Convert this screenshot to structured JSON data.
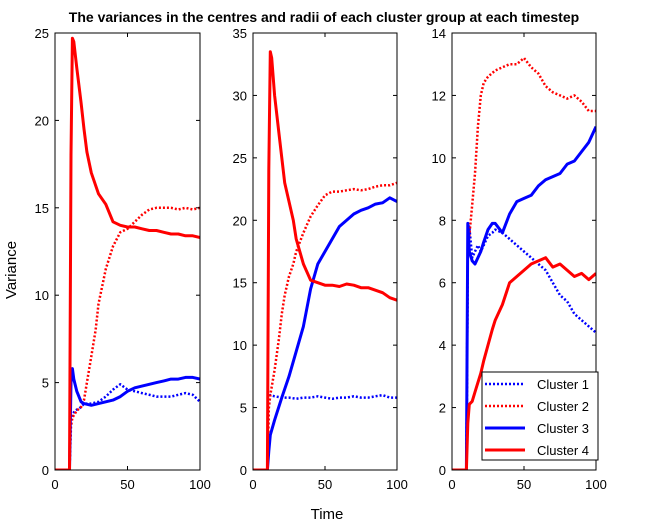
{
  "figure": {
    "title": "The variances in the centres and radii of each cluster group at each timestep",
    "xlabel": "Time",
    "ylabel": "Variance"
  },
  "legend": {
    "entries": [
      {
        "label": "Cluster 1",
        "color": "#0000ff",
        "style": "dotted"
      },
      {
        "label": "Cluster 2",
        "color": "#ff0000",
        "style": "dotted"
      },
      {
        "label": "Cluster 3",
        "color": "#0000ff",
        "style": "solid"
      },
      {
        "label": "Cluster 4",
        "color": "#ff0000",
        "style": "solid"
      }
    ],
    "placement": "bottom-right of third panel"
  },
  "chart_data": [
    {
      "type": "line",
      "xlim": [
        0,
        100
      ],
      "ylim": [
        0,
        25
      ],
      "xticks": [
        0,
        50,
        100
      ],
      "yticks": [
        0,
        5,
        10,
        15,
        20,
        25
      ],
      "series": [
        {
          "name": "Cluster 1",
          "color": "#0000ff",
          "style": "dotted",
          "x": [
            0,
            9,
            10,
            11,
            12,
            14,
            16,
            18,
            20,
            25,
            30,
            35,
            40,
            45,
            50,
            55,
            60,
            65,
            70,
            75,
            80,
            85,
            90,
            95,
            100
          ],
          "y": [
            0,
            0,
            0,
            3.0,
            3.2,
            3.4,
            3.5,
            3.6,
            3.8,
            3.8,
            3.9,
            4.2,
            4.6,
            4.9,
            4.6,
            4.5,
            4.4,
            4.3,
            4.2,
            4.2,
            4.2,
            4.3,
            4.4,
            4.3,
            3.9
          ]
        },
        {
          "name": "Cluster 2",
          "color": "#ff0000",
          "style": "dotted",
          "x": [
            0,
            9,
            10,
            11,
            12,
            15,
            18,
            20,
            22,
            25,
            28,
            30,
            35,
            40,
            45,
            50,
            55,
            60,
            65,
            70,
            75,
            80,
            85,
            90,
            95,
            100
          ],
          "y": [
            0,
            0,
            0,
            2.5,
            3.0,
            3.4,
            3.6,
            4.0,
            5.0,
            6.5,
            8.0,
            9.5,
            11.5,
            12.8,
            13.6,
            13.8,
            14.2,
            14.6,
            14.9,
            15.0,
            15.0,
            15.0,
            14.9,
            15.0,
            14.9,
            15.0
          ]
        },
        {
          "name": "Cluster 3",
          "color": "#0000ff",
          "style": "solid",
          "x": [
            0,
            9,
            10,
            11,
            12,
            13,
            15,
            18,
            20,
            25,
            30,
            35,
            40,
            45,
            50,
            55,
            60,
            65,
            70,
            75,
            80,
            85,
            90,
            95,
            100
          ],
          "y": [
            0,
            0,
            0,
            5.0,
            5.8,
            5.2,
            4.5,
            3.9,
            3.8,
            3.7,
            3.8,
            3.9,
            4.0,
            4.2,
            4.5,
            4.7,
            4.8,
            4.9,
            5.0,
            5.1,
            5.2,
            5.2,
            5.3,
            5.3,
            5.2
          ]
        },
        {
          "name": "Cluster 4",
          "color": "#ff0000",
          "style": "solid",
          "x": [
            0,
            9,
            10,
            11,
            12,
            13,
            15,
            18,
            20,
            22,
            25,
            30,
            35,
            40,
            45,
            50,
            55,
            60,
            65,
            70,
            75,
            80,
            85,
            90,
            95,
            100
          ],
          "y": [
            0,
            0,
            0,
            18,
            24.7,
            24.5,
            23.0,
            21.0,
            19.5,
            18.2,
            17.0,
            15.8,
            15.2,
            14.2,
            14.0,
            13.9,
            13.9,
            13.8,
            13.7,
            13.7,
            13.6,
            13.5,
            13.5,
            13.4,
            13.4,
            13.3
          ]
        }
      ]
    },
    {
      "type": "line",
      "xlim": [
        0,
        100
      ],
      "ylim": [
        0,
        35
      ],
      "xticks": [
        0,
        50,
        100
      ],
      "yticks": [
        0,
        5,
        10,
        15,
        20,
        25,
        30,
        35
      ],
      "series": [
        {
          "name": "Cluster 1",
          "color": "#0000ff",
          "style": "dotted",
          "x": [
            0,
            9,
            10,
            11,
            12,
            15,
            20,
            25,
            30,
            35,
            40,
            45,
            50,
            55,
            60,
            65,
            70,
            75,
            80,
            85,
            90,
            95,
            100
          ],
          "y": [
            0,
            0,
            0,
            5.0,
            6.0,
            5.9,
            5.8,
            5.8,
            5.7,
            5.8,
            5.8,
            5.9,
            5.8,
            5.7,
            5.8,
            5.8,
            5.9,
            5.8,
            5.8,
            5.9,
            6.0,
            5.8,
            5.8
          ]
        },
        {
          "name": "Cluster 2",
          "color": "#ff0000",
          "style": "dotted",
          "x": [
            0,
            9,
            10,
            11,
            12,
            15,
            18,
            20,
            22,
            25,
            28,
            30,
            35,
            40,
            45,
            50,
            55,
            60,
            65,
            70,
            75,
            80,
            85,
            90,
            95,
            100
          ],
          "y": [
            0,
            0,
            0,
            5.0,
            6.0,
            8.0,
            10.5,
            12.5,
            14.0,
            15.5,
            16.5,
            17.5,
            19.0,
            20.3,
            21.2,
            22.0,
            22.3,
            22.3,
            22.4,
            22.5,
            22.4,
            22.5,
            22.7,
            22.8,
            22.8,
            23.0
          ]
        },
        {
          "name": "Cluster 3",
          "color": "#0000ff",
          "style": "solid",
          "x": [
            0,
            9,
            10,
            11,
            12,
            15,
            20,
            25,
            30,
            35,
            40,
            45,
            50,
            55,
            60,
            65,
            70,
            75,
            80,
            85,
            90,
            95,
            100
          ],
          "y": [
            0,
            0,
            0,
            1.5,
            2.8,
            4.0,
            5.8,
            7.5,
            9.5,
            11.5,
            14.5,
            16.5,
            17.5,
            18.5,
            19.5,
            20.0,
            20.5,
            20.8,
            21.0,
            21.3,
            21.4,
            21.8,
            21.5
          ]
        },
        {
          "name": "Cluster 4",
          "color": "#ff0000",
          "style": "solid",
          "x": [
            0,
            9,
            10,
            11,
            12,
            13,
            15,
            18,
            20,
            22,
            25,
            28,
            30,
            35,
            40,
            45,
            50,
            55,
            60,
            65,
            70,
            75,
            80,
            85,
            90,
            95,
            100
          ],
          "y": [
            0,
            0,
            0,
            24,
            33.5,
            33.0,
            30.0,
            27.0,
            25.0,
            23.0,
            21.5,
            20.0,
            18.5,
            16.5,
            15.2,
            15.0,
            14.8,
            14.8,
            14.7,
            14.9,
            14.8,
            14.6,
            14.6,
            14.4,
            14.2,
            13.8,
            13.6
          ]
        }
      ]
    },
    {
      "type": "line",
      "xlim": [
        0,
        100
      ],
      "ylim": [
        0,
        14
      ],
      "xticks": [
        0,
        50,
        100
      ],
      "yticks": [
        0,
        2,
        4,
        6,
        8,
        10,
        12,
        14
      ],
      "series": [
        {
          "name": "Cluster 1",
          "color": "#0000ff",
          "style": "dotted",
          "x": [
            0,
            9,
            10,
            11,
            12,
            14,
            16,
            18,
            20,
            22,
            25,
            28,
            30,
            35,
            40,
            45,
            50,
            55,
            60,
            65,
            70,
            75,
            80,
            85,
            90,
            95,
            100
          ],
          "y": [
            0,
            0,
            0,
            7.0,
            7.8,
            6.8,
            7.0,
            7.2,
            7.0,
            7.2,
            7.5,
            7.6,
            7.7,
            7.6,
            7.4,
            7.2,
            7.0,
            6.8,
            6.6,
            6.4,
            6.0,
            5.6,
            5.4,
            5.0,
            4.8,
            4.6,
            4.4
          ]
        },
        {
          "name": "Cluster 2",
          "color": "#ff0000",
          "style": "dotted",
          "x": [
            0,
            9,
            10,
            11,
            12,
            14,
            16,
            18,
            20,
            22,
            25,
            30,
            35,
            40,
            45,
            50,
            55,
            60,
            65,
            70,
            75,
            80,
            85,
            90,
            95,
            100
          ],
          "y": [
            0,
            0,
            0,
            7.0,
            7.5,
            8.5,
            9.5,
            11.0,
            12.0,
            12.4,
            12.6,
            12.8,
            12.9,
            13.0,
            13.0,
            13.2,
            12.9,
            12.7,
            12.3,
            12.1,
            12.0,
            11.9,
            12.0,
            11.8,
            11.5,
            11.5
          ]
        },
        {
          "name": "Cluster 3",
          "color": "#0000ff",
          "style": "solid",
          "x": [
            0,
            9,
            10,
            11,
            12,
            14,
            16,
            18,
            20,
            22,
            25,
            28,
            30,
            35,
            40,
            45,
            50,
            55,
            60,
            65,
            70,
            75,
            80,
            85,
            90,
            95,
            100
          ],
          "y": [
            0,
            0,
            0,
            7.9,
            7.0,
            6.7,
            6.6,
            6.8,
            7.0,
            7.3,
            7.7,
            7.9,
            7.9,
            7.6,
            8.2,
            8.6,
            8.7,
            8.8,
            9.1,
            9.3,
            9.4,
            9.5,
            9.8,
            9.9,
            10.2,
            10.5,
            11.0
          ]
        },
        {
          "name": "Cluster 4",
          "color": "#ff0000",
          "style": "solid",
          "x": [
            0,
            9,
            10,
            11,
            12,
            14,
            16,
            18,
            20,
            22,
            25,
            28,
            30,
            35,
            40,
            45,
            50,
            55,
            60,
            65,
            70,
            75,
            80,
            85,
            90,
            95,
            100
          ],
          "y": [
            0,
            0,
            0,
            1.5,
            2.1,
            2.2,
            2.5,
            2.8,
            3.1,
            3.5,
            4.0,
            4.5,
            4.8,
            5.3,
            6.0,
            6.2,
            6.4,
            6.6,
            6.7,
            6.8,
            6.5,
            6.6,
            6.4,
            6.2,
            6.3,
            6.1,
            6.3
          ]
        }
      ]
    }
  ]
}
